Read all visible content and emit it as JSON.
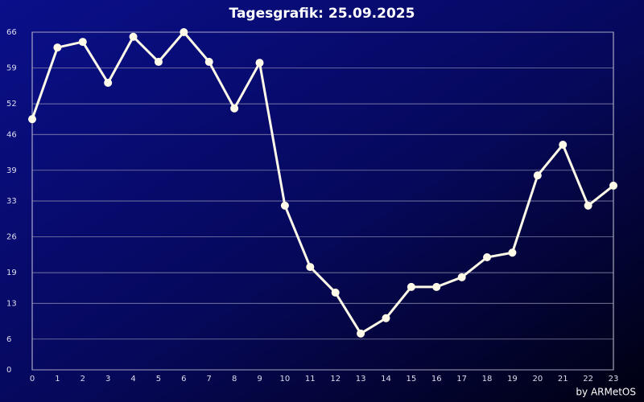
{
  "chart_data": {
    "type": "line",
    "title": "Tagesgrafik: 25.09.2025",
    "footer": "by ARMetOS",
    "x": [
      0,
      1,
      2,
      3,
      4,
      5,
      6,
      7,
      8,
      9,
      10,
      11,
      12,
      13,
      14,
      15,
      16,
      17,
      18,
      19,
      20,
      21,
      22,
      23
    ],
    "series": [
      {
        "color": "#fffbe8",
        "values": [
          49.0,
          63.0,
          64.1,
          56.1,
          65.1,
          60.2,
          66.0,
          60.2,
          51.1,
          60.0,
          32.1,
          20.1,
          15.1,
          7.1,
          10.1,
          16.2,
          16.2,
          18.1,
          22.0,
          22.9,
          38.0,
          44.0,
          32.1,
          36.0
        ]
      }
    ],
    "xlim": [
      0,
      23
    ],
    "xticks": [
      0,
      1,
      2,
      3,
      4,
      5,
      6,
      7,
      8,
      9,
      10,
      11,
      12,
      13,
      14,
      15,
      16,
      17,
      18,
      19,
      20,
      21,
      22,
      23
    ],
    "ylim": [
      0,
      66
    ],
    "yticks": [
      0,
      6,
      13,
      19,
      26,
      33,
      39,
      46,
      52,
      59,
      66
    ],
    "grid": true
  }
}
